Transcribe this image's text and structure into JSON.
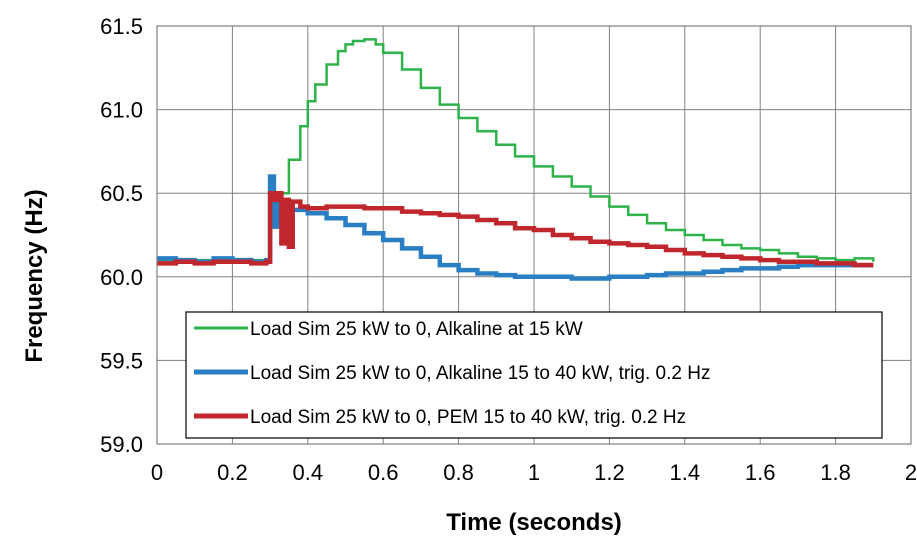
{
  "chart_data": {
    "type": "line",
    "title": "",
    "xlabel": "Time (seconds)",
    "ylabel": "Frequency (Hz)",
    "xlim": [
      0,
      2
    ],
    "ylim": [
      59.0,
      61.5
    ],
    "x_ticks": [
      0,
      0.2,
      0.4,
      0.6,
      0.8,
      1,
      1.2,
      1.4,
      1.6,
      1.8,
      2
    ],
    "x_tick_labels": [
      "0",
      "0.2",
      "0.4",
      "0.6",
      "0.8",
      "1",
      "1.2",
      "1.4",
      "1.6",
      "1.8",
      "2"
    ],
    "y_ticks": [
      59.0,
      59.5,
      60.0,
      60.5,
      61.0,
      61.5
    ],
    "y_tick_labels": [
      "59.0",
      "59.5",
      "60.0",
      "60.5",
      "61.0",
      "61.5"
    ],
    "grid": true,
    "legend_position": "bottom-left",
    "series": [
      {
        "name": "Load Sim 25 kW to 0, Alkaline at 15 kW",
        "color": "#2db34a",
        "x": [
          0,
          0.05,
          0.1,
          0.15,
          0.2,
          0.25,
          0.29,
          0.3,
          0.31,
          0.33,
          0.35,
          0.38,
          0.4,
          0.42,
          0.45,
          0.48,
          0.5,
          0.52,
          0.55,
          0.58,
          0.6,
          0.65,
          0.7,
          0.75,
          0.8,
          0.85,
          0.9,
          0.95,
          1.0,
          1.05,
          1.1,
          1.15,
          1.2,
          1.25,
          1.3,
          1.35,
          1.4,
          1.45,
          1.5,
          1.55,
          1.6,
          1.65,
          1.7,
          1.75,
          1.8,
          1.85,
          1.9
        ],
        "values": [
          60.1,
          60.09,
          60.1,
          60.1,
          60.09,
          60.1,
          60.1,
          60.58,
          60.42,
          60.5,
          60.7,
          60.9,
          61.05,
          61.15,
          61.27,
          61.35,
          61.39,
          61.41,
          61.42,
          61.39,
          61.34,
          61.24,
          61.13,
          61.03,
          60.95,
          60.87,
          60.79,
          60.72,
          60.66,
          60.6,
          60.54,
          60.48,
          60.42,
          60.37,
          60.32,
          60.28,
          60.25,
          60.22,
          60.19,
          60.17,
          60.16,
          60.14,
          60.12,
          60.11,
          60.1,
          60.11,
          60.09
        ]
      },
      {
        "name": "Load Sim 25 kW to 0, Alkaline 15 to 40 kW, trig.  0.2 Hz",
        "color": "#2a7fc4",
        "x": [
          0,
          0.05,
          0.1,
          0.15,
          0.2,
          0.25,
          0.29,
          0.3,
          0.31,
          0.32,
          0.33,
          0.34,
          0.35,
          0.38,
          0.4,
          0.45,
          0.5,
          0.55,
          0.6,
          0.65,
          0.7,
          0.75,
          0.8,
          0.85,
          0.9,
          0.95,
          1.0,
          1.05,
          1.1,
          1.15,
          1.2,
          1.25,
          1.3,
          1.35,
          1.4,
          1.45,
          1.5,
          1.55,
          1.6,
          1.65,
          1.7,
          1.75,
          1.8,
          1.85,
          1.9
        ],
        "values": [
          60.11,
          60.1,
          60.09,
          60.11,
          60.1,
          60.09,
          60.1,
          60.6,
          60.3,
          60.44,
          60.36,
          60.38,
          60.4,
          60.4,
          60.38,
          60.35,
          60.31,
          60.26,
          60.22,
          60.17,
          60.12,
          60.07,
          60.04,
          60.02,
          60.01,
          60.0,
          60.0,
          60.0,
          59.99,
          59.99,
          60.0,
          60.0,
          60.01,
          60.02,
          60.02,
          60.03,
          60.04,
          60.05,
          60.05,
          60.06,
          60.07,
          60.07,
          60.07,
          60.07,
          60.07
        ]
      },
      {
        "name": "Load Sim 25 kW to 0,  PEM 15 to 40 kW, trig.  0.2 Hz",
        "color": "#c0272d",
        "x": [
          0,
          0.05,
          0.1,
          0.15,
          0.2,
          0.25,
          0.29,
          0.3,
          0.31,
          0.32,
          0.33,
          0.34,
          0.35,
          0.36,
          0.38,
          0.4,
          0.45,
          0.5,
          0.55,
          0.6,
          0.65,
          0.7,
          0.75,
          0.8,
          0.85,
          0.9,
          0.95,
          1.0,
          1.05,
          1.1,
          1.15,
          1.2,
          1.25,
          1.3,
          1.35,
          1.4,
          1.45,
          1.5,
          1.55,
          1.6,
          1.65,
          1.7,
          1.75,
          1.8,
          1.85,
          1.9
        ],
        "values": [
          60.08,
          60.09,
          60.08,
          60.09,
          60.09,
          60.08,
          60.09,
          60.5,
          60.46,
          60.5,
          60.2,
          60.46,
          60.18,
          60.45,
          60.42,
          60.41,
          60.42,
          60.42,
          60.41,
          60.41,
          60.39,
          60.38,
          60.37,
          60.36,
          60.34,
          60.32,
          60.29,
          60.28,
          60.25,
          60.23,
          60.21,
          60.2,
          60.19,
          60.18,
          60.16,
          60.14,
          60.13,
          60.12,
          60.11,
          60.1,
          60.09,
          60.09,
          60.08,
          60.08,
          60.07,
          60.07
        ]
      }
    ]
  }
}
